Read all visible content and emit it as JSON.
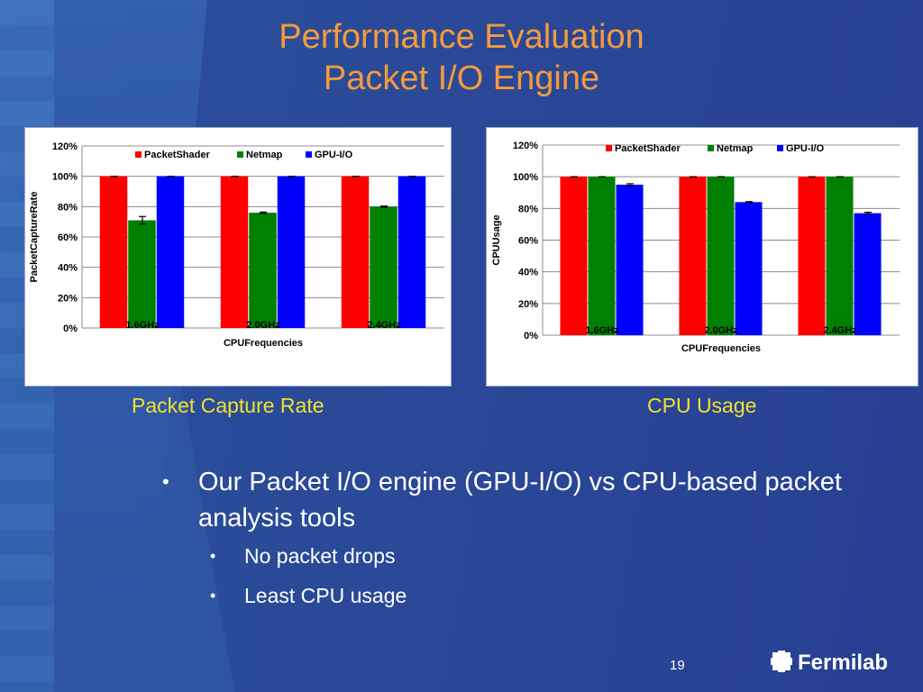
{
  "slide": {
    "title_line1": "Performance Evaluation",
    "title_line2": "Packet I/O Engine",
    "caption_left": "Packet Capture Rate",
    "caption_right": "CPU Usage",
    "bullet_main": "Our Packet I/O engine (GPU-I/O) vs CPU-based packet analysis tools",
    "bullet_sub1": "No packet drops",
    "bullet_sub2": "Least CPU usage",
    "page_number": "19",
    "logo_text": "Fermilab"
  },
  "chart_data": [
    {
      "type": "bar",
      "categories": [
        "1.6\u001fGHz\u001f",
        "2.0\u001fGHz\u001f",
        "2.4\u001fGHz\u001f"
      ],
      "tick_labels": [
        "0%\u001f",
        "20%\u001f",
        "40%\u001f",
        "60%\u001f",
        "80%\u001f",
        "100%\u001f",
        "120%\u001f"
      ],
      "series": [
        {
          "name": "PacketShader\u001f",
          "color": "#ff0000",
          "values": [
            100,
            100,
            100
          ],
          "errors": [
            0,
            0,
            0
          ]
        },
        {
          "name": "Netmap\u001f",
          "color": "#008000",
          "values": [
            71,
            76,
            80
          ],
          "errors": [
            2.5,
            0.4,
            0.4
          ]
        },
        {
          "name": "GPU-I/O\u001f",
          "color": "#0000ff",
          "values": [
            100,
            100,
            100
          ],
          "errors": [
            0,
            0,
            0
          ]
        }
      ],
      "xlabel": "CPU\u001fFrequencies\u001f",
      "ylabel": "Packet\u001fCapture\u001fRate\u001f",
      "ylim": [
        0,
        120
      ],
      "grid": true,
      "legend": "top"
    },
    {
      "type": "bar",
      "categories": [
        "1.6\u001fGHz\u001f",
        "2.0\u001fGHz\u001f",
        "2.4\u001fGHz\u001f"
      ],
      "tick_labels": [
        "0%\u001f",
        "20%\u001f",
        "40%\u001f",
        "60%\u001f",
        "80%\u001f",
        "100%\u001f",
        "120%\u001f"
      ],
      "series": [
        {
          "name": "PacketShader\u001f",
          "color": "#ff0000",
          "values": [
            100,
            100,
            100
          ],
          "errors": [
            0,
            0,
            0
          ]
        },
        {
          "name": "Netmap\u001f",
          "color": "#008000",
          "values": [
            100,
            100,
            100
          ],
          "errors": [
            0,
            0,
            0
          ]
        },
        {
          "name": "GPU-I/O\u001f",
          "color": "#0000ff",
          "values": [
            95,
            84,
            77
          ],
          "errors": [
            0.6,
            0.3,
            0.6
          ]
        }
      ],
      "xlabel": "CPU\u001fFrequencies\u001f",
      "ylabel": "CPU\u001fUsage\u001f",
      "ylim": [
        0,
        120
      ],
      "grid": true,
      "legend": "top"
    }
  ]
}
